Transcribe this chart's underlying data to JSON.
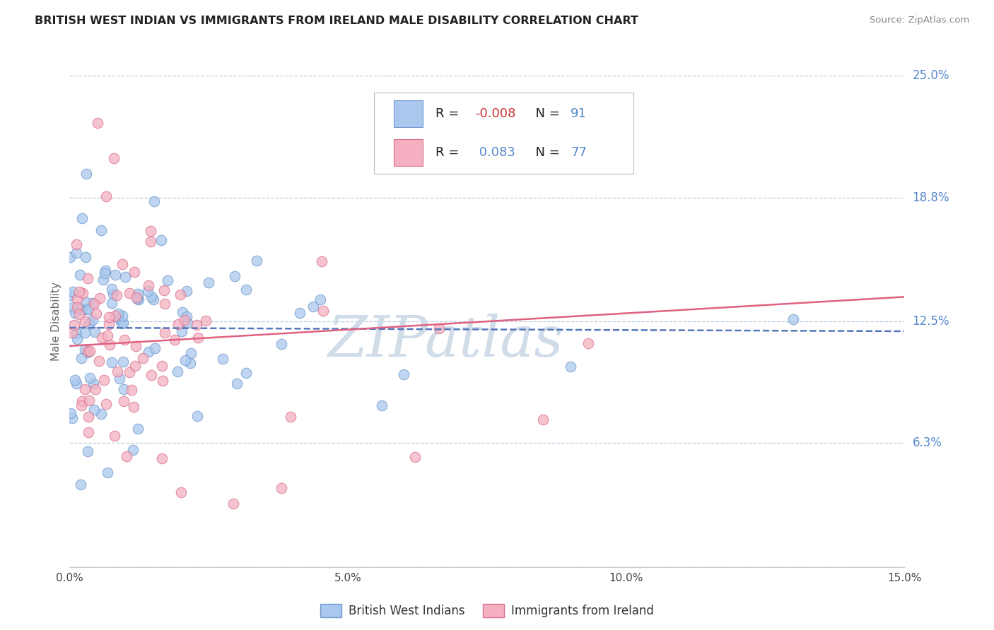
{
  "title": "BRITISH WEST INDIAN VS IMMIGRANTS FROM IRELAND MALE DISABILITY CORRELATION CHART",
  "source": "Source: ZipAtlas.com",
  "ylabel": "Male Disability",
  "xlim": [
    0.0,
    0.15
  ],
  "ylim": [
    0.0,
    0.25
  ],
  "ytick_vals": [
    0.0,
    0.063,
    0.125,
    0.188,
    0.25
  ],
  "ytick_labels": [
    "",
    "6.3%",
    "12.5%",
    "18.8%",
    "25.0%"
  ],
  "xtick_vals": [
    0.0,
    0.05,
    0.1,
    0.15
  ],
  "xtick_labels": [
    "0.0%",
    "5.0%",
    "10.0%",
    "15.0%"
  ],
  "blue_R": -0.008,
  "blue_N": 91,
  "pink_R": 0.083,
  "pink_N": 77,
  "blue_fill": "#aac8ee",
  "blue_edge": "#7099cc",
  "pink_fill": "#f4b0c0",
  "pink_edge": "#d87090",
  "blue_line": "#5577bb",
  "pink_line": "#e06080",
  "legend_label_blue": "British West Indians",
  "legend_label_pink": "Immigrants from Ireland",
  "watermark": "ZIPatlas",
  "watermark_color": "#d0dce8",
  "title_color": "#222222",
  "source_color": "#888888",
  "ylabel_color": "#666666",
  "label_color": "#5588cc",
  "grid_color": "#b8cce0",
  "axis_color": "#cccccc"
}
